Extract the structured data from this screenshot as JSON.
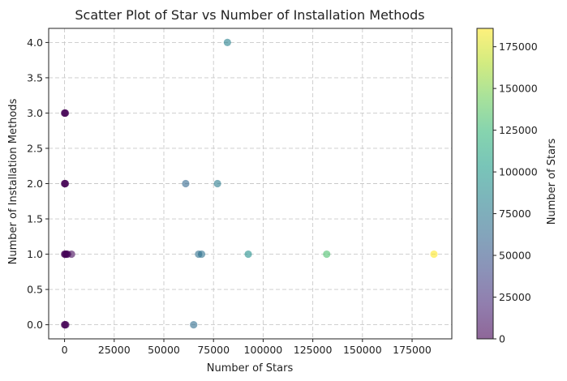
{
  "chart_data": {
    "type": "scatter",
    "title": "Scatter Plot of Star vs Number of Installation Methods",
    "xlabel": "Number of Stars",
    "ylabel": "Number of Installation Methods",
    "xlim": [
      -8000,
      195000
    ],
    "ylim": [
      -0.2,
      4.2
    ],
    "x_ticks": [
      0,
      25000,
      50000,
      75000,
      100000,
      125000,
      150000,
      175000
    ],
    "x_tick_labels": [
      "0",
      "25000",
      "50000",
      "75000",
      "100000",
      "125000",
      "150000",
      "175000"
    ],
    "y_ticks": [
      0.0,
      0.5,
      1.0,
      1.5,
      2.0,
      2.5,
      3.0,
      3.5,
      4.0
    ],
    "y_tick_labels": [
      "0.0",
      "0.5",
      "1.0",
      "1.5",
      "2.0",
      "2.5",
      "3.0",
      "3.5",
      "4.0"
    ],
    "grid": true,
    "point_alpha": 0.6,
    "colorbar": {
      "label": "Number of Stars",
      "min": 0,
      "max": 186000,
      "ticks": [
        0,
        25000,
        50000,
        75000,
        100000,
        125000,
        150000,
        175000
      ],
      "tick_labels": [
        "0",
        "25000",
        "50000",
        "75000",
        "100000",
        "125000",
        "150000",
        "175000"
      ],
      "colormap": "viridis",
      "colormap_stops": [
        "#440154",
        "#482878",
        "#3e4a89",
        "#31688e",
        "#26828e",
        "#1f9e89",
        "#35b779",
        "#6ece58",
        "#b5de2b",
        "#fde725"
      ]
    },
    "points": [
      {
        "x": 0,
        "y": 3
      },
      {
        "x": 200,
        "y": 3
      },
      {
        "x": 400,
        "y": 3
      },
      {
        "x": 0,
        "y": 2
      },
      {
        "x": 200,
        "y": 2
      },
      {
        "x": 400,
        "y": 2
      },
      {
        "x": 0,
        "y": 1
      },
      {
        "x": 300,
        "y": 1
      },
      {
        "x": 600,
        "y": 1
      },
      {
        "x": 1000,
        "y": 1
      },
      {
        "x": 1500,
        "y": 1
      },
      {
        "x": 3500,
        "y": 1
      },
      {
        "x": 0,
        "y": 0
      },
      {
        "x": 300,
        "y": 0
      },
      {
        "x": 600,
        "y": 0
      },
      {
        "x": 61000,
        "y": 2
      },
      {
        "x": 77000,
        "y": 2
      },
      {
        "x": 82000,
        "y": 4
      },
      {
        "x": 67500,
        "y": 1
      },
      {
        "x": 69000,
        "y": 1
      },
      {
        "x": 92500,
        "y": 1
      },
      {
        "x": 132000,
        "y": 1
      },
      {
        "x": 186000,
        "y": 1
      },
      {
        "x": 65000,
        "y": 0
      }
    ]
  }
}
